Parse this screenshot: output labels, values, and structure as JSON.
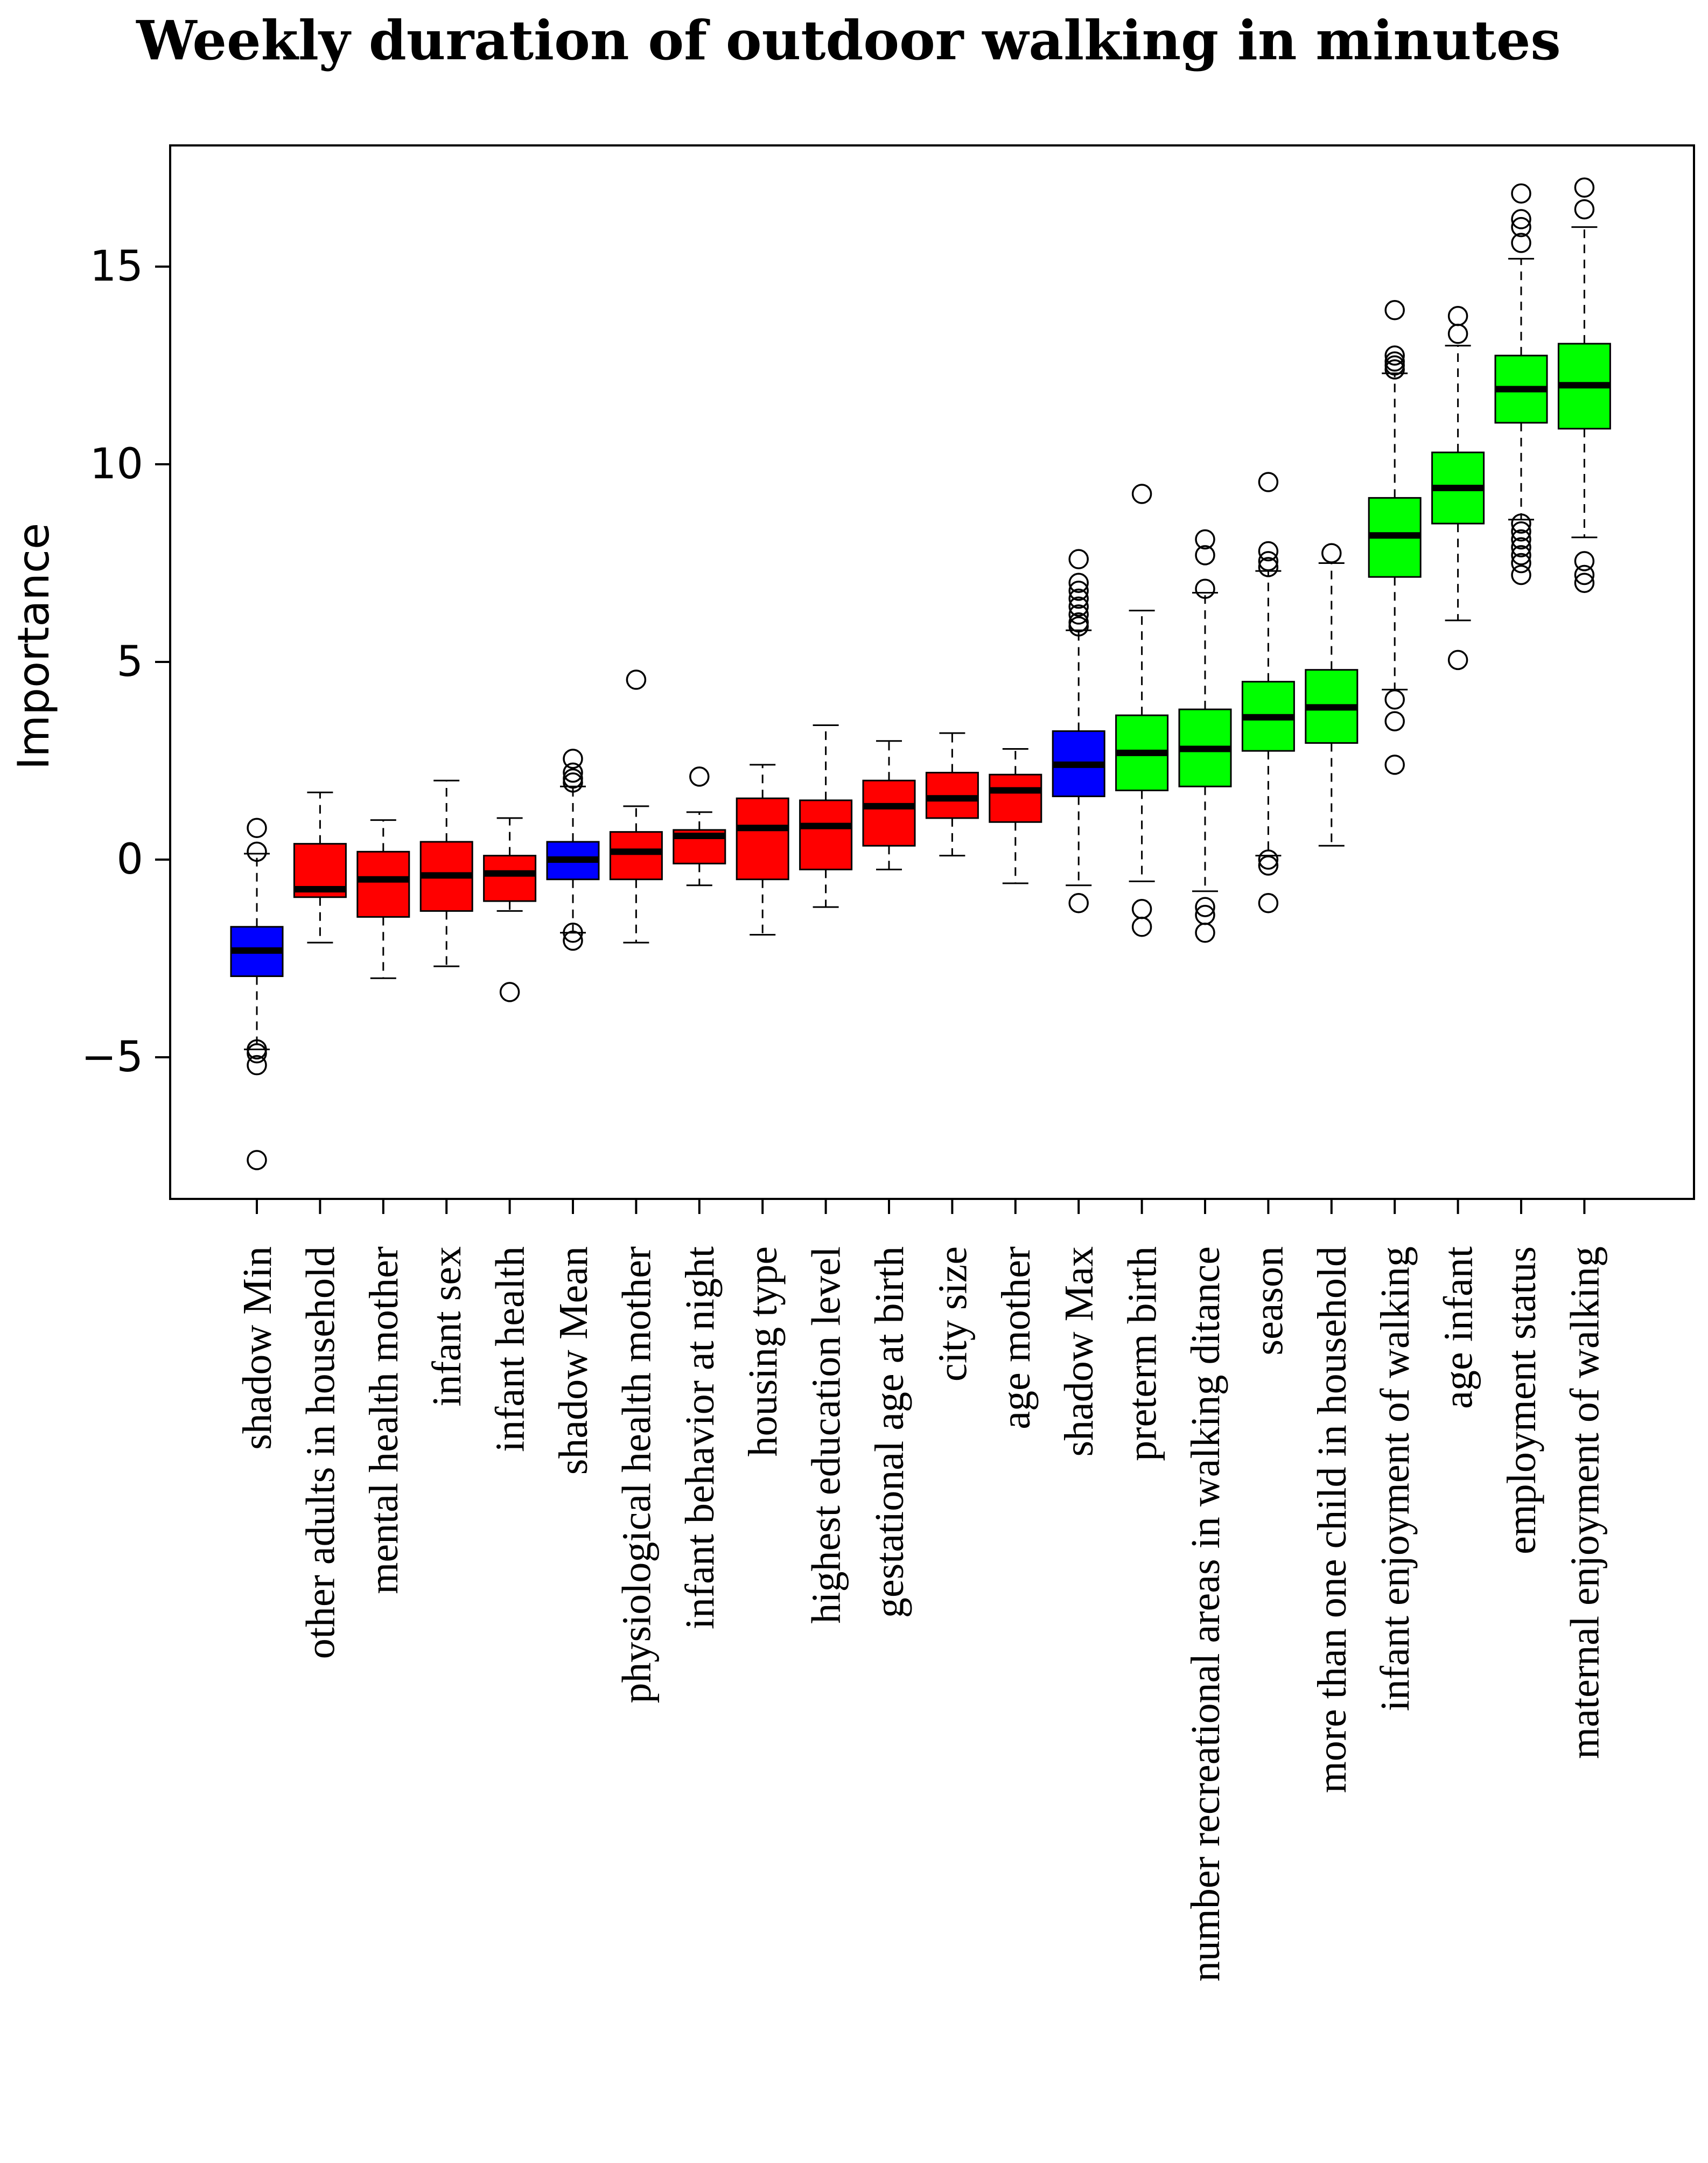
{
  "chart_data": {
    "type": "box",
    "title": "Weekly duration of outdoor walking in minutes",
    "xlabel": "",
    "ylabel": "Importance",
    "ylim": [
      -8.5,
      18
    ],
    "yticks": [
      -5,
      0,
      5,
      10,
      15
    ],
    "grid": false,
    "legend": "none",
    "colors": {
      "shadow": "#0000ff",
      "rejected": "#ff0000",
      "confirmed": "#00ff00"
    },
    "categories": [
      "shadow Min",
      "other adults in household",
      "mental health mother",
      "infant sex",
      "infant health",
      "shadow Mean",
      "physiological health mother",
      "infant behavior at night",
      "housing type",
      "highest education level",
      "gestational age at birth",
      "city size",
      "age mother",
      "shadow Max",
      "preterm birth",
      "number recreational areas in walking ditance",
      "season",
      "more than one child in household",
      "infant enjoyment of walking",
      "age infant",
      "employment status",
      "maternal enjoyment of walking"
    ],
    "boxes": [
      {
        "status": "shadow",
        "whisker_low": -4.8,
        "q1": -2.95,
        "median": -2.3,
        "q3": -1.7,
        "whisker_high": 0.15,
        "outliers": [
          0.8,
          0.2,
          -4.8,
          -4.9,
          -5.2,
          -7.6
        ]
      },
      {
        "status": "rejected",
        "whisker_low": -2.1,
        "q1": -0.95,
        "median": -0.75,
        "q3": 0.4,
        "whisker_high": 1.7,
        "outliers": []
      },
      {
        "status": "rejected",
        "whisker_low": -3.0,
        "q1": -1.45,
        "median": -0.5,
        "q3": 0.2,
        "whisker_high": 1.0,
        "outliers": []
      },
      {
        "status": "rejected",
        "whisker_low": -2.7,
        "q1": -1.3,
        "median": -0.4,
        "q3": 0.45,
        "whisker_high": 2.0,
        "outliers": []
      },
      {
        "status": "rejected",
        "whisker_low": -1.3,
        "q1": -1.05,
        "median": -0.35,
        "q3": 0.1,
        "whisker_high": 1.05,
        "outliers": [
          -3.35
        ]
      },
      {
        "status": "shadow",
        "whisker_low": -1.85,
        "q1": -0.5,
        "median": 0.0,
        "q3": 0.45,
        "whisker_high": 1.85,
        "outliers": [
          2.55,
          2.2,
          2.05,
          1.95,
          -1.85,
          -2.05
        ]
      },
      {
        "status": "rejected",
        "whisker_low": -2.1,
        "q1": -0.5,
        "median": 0.2,
        "q3": 0.7,
        "whisker_high": 1.35,
        "outliers": [
          4.55
        ]
      },
      {
        "status": "rejected",
        "whisker_low": -0.65,
        "q1": -0.1,
        "median": 0.6,
        "q3": 0.75,
        "whisker_high": 1.2,
        "outliers": [
          2.1
        ]
      },
      {
        "status": "rejected",
        "whisker_low": -1.9,
        "q1": -0.5,
        "median": 0.8,
        "q3": 1.55,
        "whisker_high": 2.4,
        "outliers": []
      },
      {
        "status": "rejected",
        "whisker_low": -1.2,
        "q1": -0.25,
        "median": 0.85,
        "q3": 1.5,
        "whisker_high": 3.4,
        "outliers": []
      },
      {
        "status": "rejected",
        "whisker_low": -0.25,
        "q1": 0.35,
        "median": 1.35,
        "q3": 2.0,
        "whisker_high": 3.0,
        "outliers": []
      },
      {
        "status": "rejected",
        "whisker_low": 0.1,
        "q1": 1.05,
        "median": 1.55,
        "q3": 2.2,
        "whisker_high": 3.2,
        "outliers": []
      },
      {
        "status": "rejected",
        "whisker_low": -0.6,
        "q1": 0.95,
        "median": 1.75,
        "q3": 2.15,
        "whisker_high": 2.8,
        "outliers": []
      },
      {
        "status": "shadow",
        "whisker_low": -0.65,
        "q1": 1.6,
        "median": 2.4,
        "q3": 3.25,
        "whisker_high": 5.8,
        "outliers": [
          7.6,
          7.0,
          6.8,
          6.6,
          6.4,
          6.2,
          6.0,
          5.9,
          -1.1
        ]
      },
      {
        "status": "confirmed",
        "whisker_low": -0.55,
        "q1": 1.75,
        "median": 2.7,
        "q3": 3.65,
        "whisker_high": 6.3,
        "outliers": [
          9.25,
          -1.25,
          -1.7
        ]
      },
      {
        "status": "confirmed",
        "whisker_low": -0.8,
        "q1": 1.85,
        "median": 2.8,
        "q3": 3.8,
        "whisker_high": 6.75,
        "outliers": [
          8.1,
          7.7,
          6.85,
          -1.2,
          -1.4,
          -1.85
        ]
      },
      {
        "status": "confirmed",
        "whisker_low": 0.1,
        "q1": 2.75,
        "median": 3.6,
        "q3": 4.5,
        "whisker_high": 7.3,
        "outliers": [
          9.55,
          7.8,
          7.55,
          7.4,
          0.0,
          -0.15,
          -1.1
        ]
      },
      {
        "status": "confirmed",
        "whisker_low": 0.35,
        "q1": 2.95,
        "median": 3.85,
        "q3": 4.8,
        "whisker_high": 7.5,
        "outliers": [
          7.75
        ]
      },
      {
        "status": "confirmed",
        "whisker_low": 4.3,
        "q1": 7.15,
        "median": 8.2,
        "q3": 9.15,
        "whisker_high": 12.3,
        "outliers": [
          13.9,
          12.75,
          12.6,
          12.5,
          12.4,
          4.05,
          3.5,
          2.4
        ]
      },
      {
        "status": "confirmed",
        "whisker_low": 6.05,
        "q1": 8.5,
        "median": 9.4,
        "q3": 10.3,
        "whisker_high": 13.0,
        "outliers": [
          13.75,
          13.3,
          5.05
        ]
      },
      {
        "status": "confirmed",
        "whisker_low": 8.6,
        "q1": 11.05,
        "median": 11.9,
        "q3": 12.75,
        "whisker_high": 15.2,
        "outliers": [
          16.85,
          16.2,
          16.0,
          15.6,
          8.5,
          8.3,
          8.1,
          7.9,
          7.7,
          7.5,
          7.2
        ]
      },
      {
        "status": "confirmed",
        "whisker_low": 8.15,
        "q1": 10.9,
        "median": 12.0,
        "q3": 13.05,
        "whisker_high": 16.0,
        "outliers": [
          17.0,
          16.45,
          7.55,
          7.2,
          7.0
        ]
      }
    ]
  }
}
